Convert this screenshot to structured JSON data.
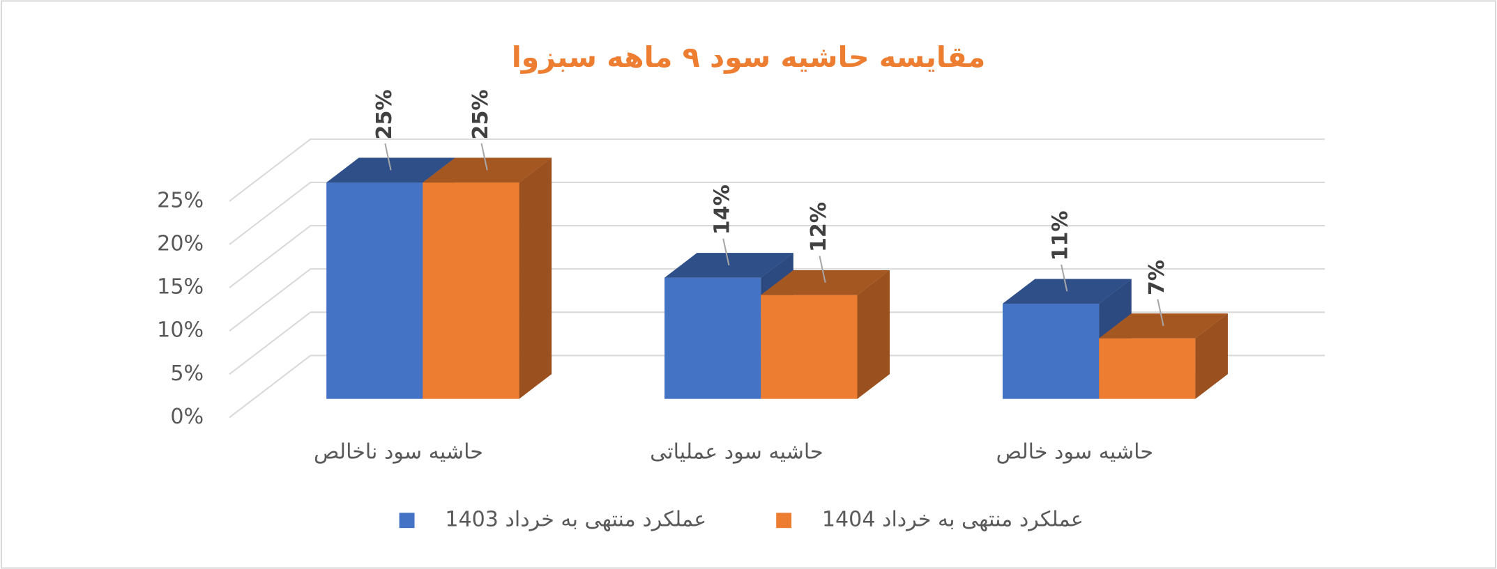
{
  "chart_data": {
    "type": "bar3d",
    "title": "مقایسه حاشیه سود ۹ ماهه سبزوا",
    "categories": [
      "حاشیه سود ناخالص",
      "حاشیه سود عملیاتی",
      "حاشیه سود خالص"
    ],
    "series": [
      {
        "name": "عملکرد منتهی به خرداد 1403",
        "color": "#4472c4",
        "values": [
          25,
          14,
          11
        ],
        "value_labels": [
          "25%",
          "14%",
          "11%"
        ]
      },
      {
        "name": "عملکرد منتهی به خرداد 1404",
        "color": "#ed7d31",
        "values": [
          25,
          12,
          7
        ],
        "value_labels": [
          "25%",
          "12%",
          "7%"
        ]
      }
    ],
    "ylim": [
      0,
      25
    ],
    "yticks": [
      {
        "value": 0,
        "label": "0%"
      },
      {
        "value": 5,
        "label": "5%"
      },
      {
        "value": 10,
        "label": "10%"
      },
      {
        "value": 15,
        "label": "15%"
      },
      {
        "value": 20,
        "label": "20%"
      },
      {
        "value": 25,
        "label": "25%"
      }
    ],
    "grid": true,
    "legend": "bottom"
  }
}
